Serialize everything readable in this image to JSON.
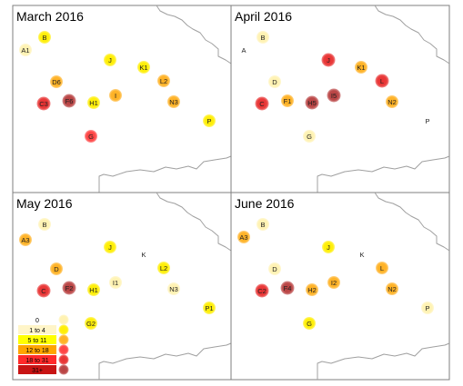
{
  "panels": [
    {
      "title": "March 2016",
      "markers": [
        {
          "label": "A1",
          "bin": 1
        },
        {
          "label": "B",
          "bin": 2
        },
        {
          "label": "D6",
          "bin": 3
        },
        {
          "label": "C3",
          "bin": 5
        },
        {
          "label": "F6",
          "bin": 6
        },
        {
          "label": "H1",
          "bin": 2
        },
        {
          "label": "I",
          "bin": 3
        },
        {
          "label": "J",
          "bin": 2
        },
        {
          "label": "K1",
          "bin": 2
        },
        {
          "label": "L2",
          "bin": 3
        },
        {
          "label": "N3",
          "bin": 3
        },
        {
          "label": "P",
          "bin": 2
        },
        {
          "label": "G",
          "bin": 4
        }
      ]
    },
    {
      "title": "April 2016",
      "markers": [
        {
          "label": "A",
          "bin": 0
        },
        {
          "label": "B",
          "bin": 1
        },
        {
          "label": "D",
          "bin": 1
        },
        {
          "label": "C",
          "bin": 5
        },
        {
          "label": "F1",
          "bin": 3
        },
        {
          "label": "H5",
          "bin": 6
        },
        {
          "label": "I5",
          "bin": 6
        },
        {
          "label": "J",
          "bin": 5
        },
        {
          "label": "K1",
          "bin": 3
        },
        {
          "label": "L",
          "bin": 5
        },
        {
          "label": "N2",
          "bin": 3
        },
        {
          "label": "P",
          "bin": 0
        },
        {
          "label": "G",
          "bin": 1
        }
      ]
    },
    {
      "title": "May 2016",
      "markers": [
        {
          "label": "A3",
          "bin": 3
        },
        {
          "label": "B",
          "bin": 1
        },
        {
          "label": "D",
          "bin": 3
        },
        {
          "label": "C",
          "bin": 5
        },
        {
          "label": "F2",
          "bin": 6
        },
        {
          "label": "H1",
          "bin": 2
        },
        {
          "label": "I1",
          "bin": 1
        },
        {
          "label": "J",
          "bin": 2
        },
        {
          "label": "K",
          "bin": 0
        },
        {
          "label": "L2",
          "bin": 2
        },
        {
          "label": "N3",
          "bin": 1
        },
        {
          "label": "P1",
          "bin": 2
        },
        {
          "label": "G2",
          "bin": 2
        }
      ]
    },
    {
      "title": "June 2016",
      "markers": [
        {
          "label": "A3",
          "bin": 3
        },
        {
          "label": "B",
          "bin": 1
        },
        {
          "label": "D",
          "bin": 1
        },
        {
          "label": "C2",
          "bin": 5
        },
        {
          "label": "F4",
          "bin": 6
        },
        {
          "label": "H2",
          "bin": 3
        },
        {
          "label": "I2",
          "bin": 3
        },
        {
          "label": "J",
          "bin": 2
        },
        {
          "label": "K",
          "bin": 0
        },
        {
          "label": "L",
          "bin": 3
        },
        {
          "label": "N2",
          "bin": 3
        },
        {
          "label": "P",
          "bin": 1
        },
        {
          "label": "G",
          "bin": 2
        }
      ]
    }
  ],
  "legend": {
    "bins": [
      {
        "label": "0",
        "color": "#ffffff",
        "text_color": "#000000"
      },
      {
        "label": "1 to 4",
        "color": "#fff5c8",
        "text_color": "#000000"
      },
      {
        "label": "5 to 11",
        "color": "#ffff00",
        "text_color": "#000000"
      },
      {
        "label": "12 to 18",
        "color": "#ffa500",
        "text_color": "#000000"
      },
      {
        "label": "18 to 31",
        "color": "#ff2a2a",
        "text_color": "#000000"
      },
      {
        "label": "31+",
        "color": "#c81414",
        "text_color": "#000000"
      }
    ],
    "circle_colors": [
      "#ffffff",
      "#fff2b0",
      "#ffee00",
      "#ffb020",
      "#ff4040",
      "#e83030",
      "#b84040"
    ]
  },
  "colors": {
    "coastline": "#a0a0a0",
    "panel_border": "#7f7f7f"
  }
}
